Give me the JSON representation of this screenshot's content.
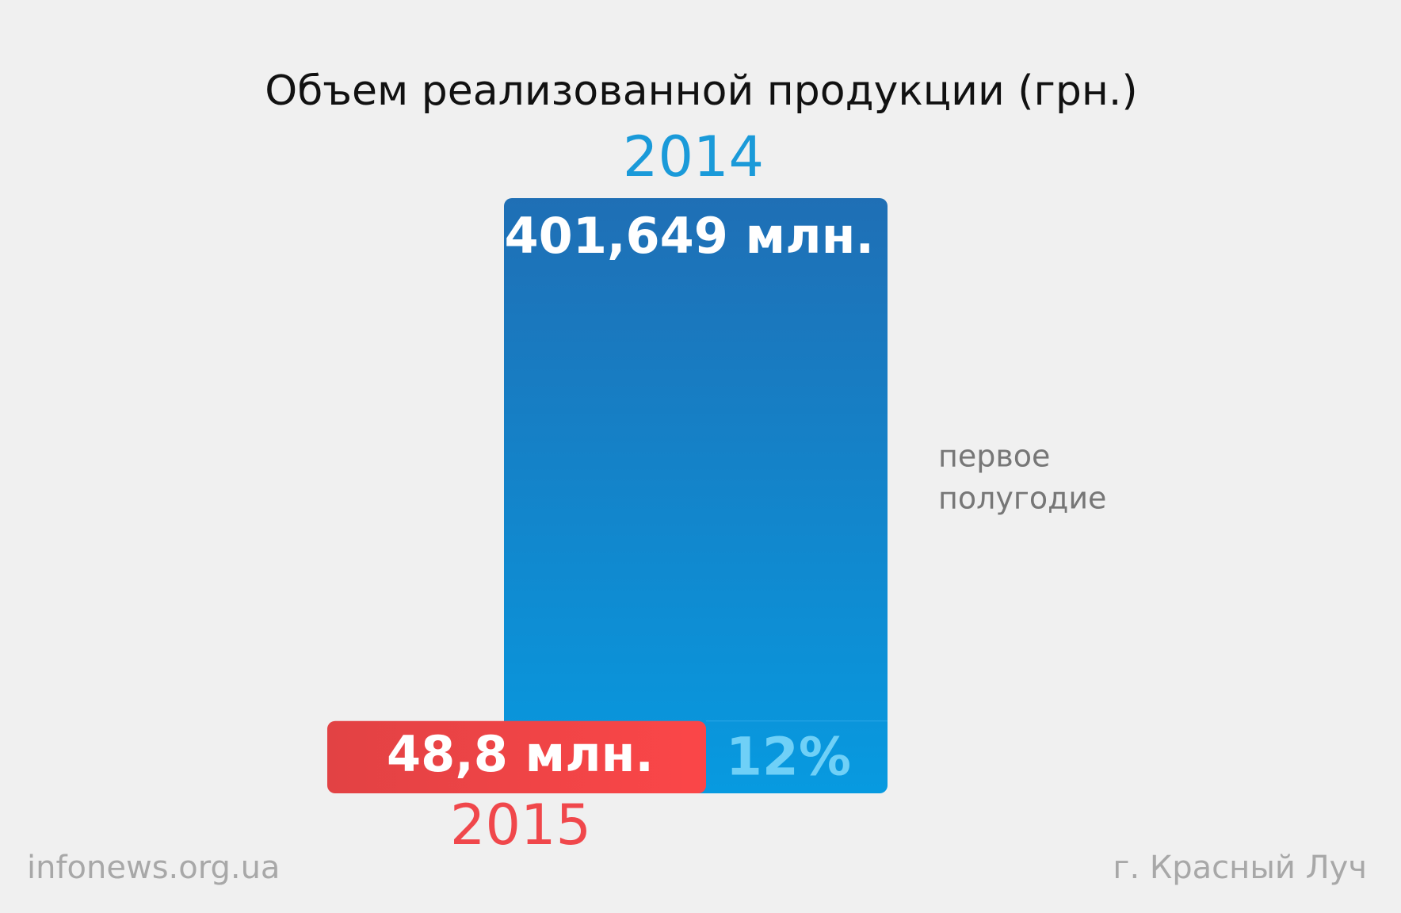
{
  "chart_data": {
    "type": "bar",
    "title": "Объем реализованной продукции (грн.)",
    "categories": [
      "2014",
      "2015"
    ],
    "values": [
      401.649,
      48.8
    ],
    "value_labels": [
      "401,649 млн.",
      "48,8 млн."
    ],
    "colors": [
      [
        "#1f6fb5",
        "#079ae0"
      ],
      [
        "#e24244",
        "#fb4648"
      ]
    ],
    "label_colors": [
      "#1a9ad9",
      "#f0474b"
    ],
    "share": {
      "value": 12,
      "label": "12%"
    },
    "note": [
      "первое",
      "полугодие"
    ],
    "source": "infonews.org.ua",
    "location": "г. Красный Луч"
  }
}
